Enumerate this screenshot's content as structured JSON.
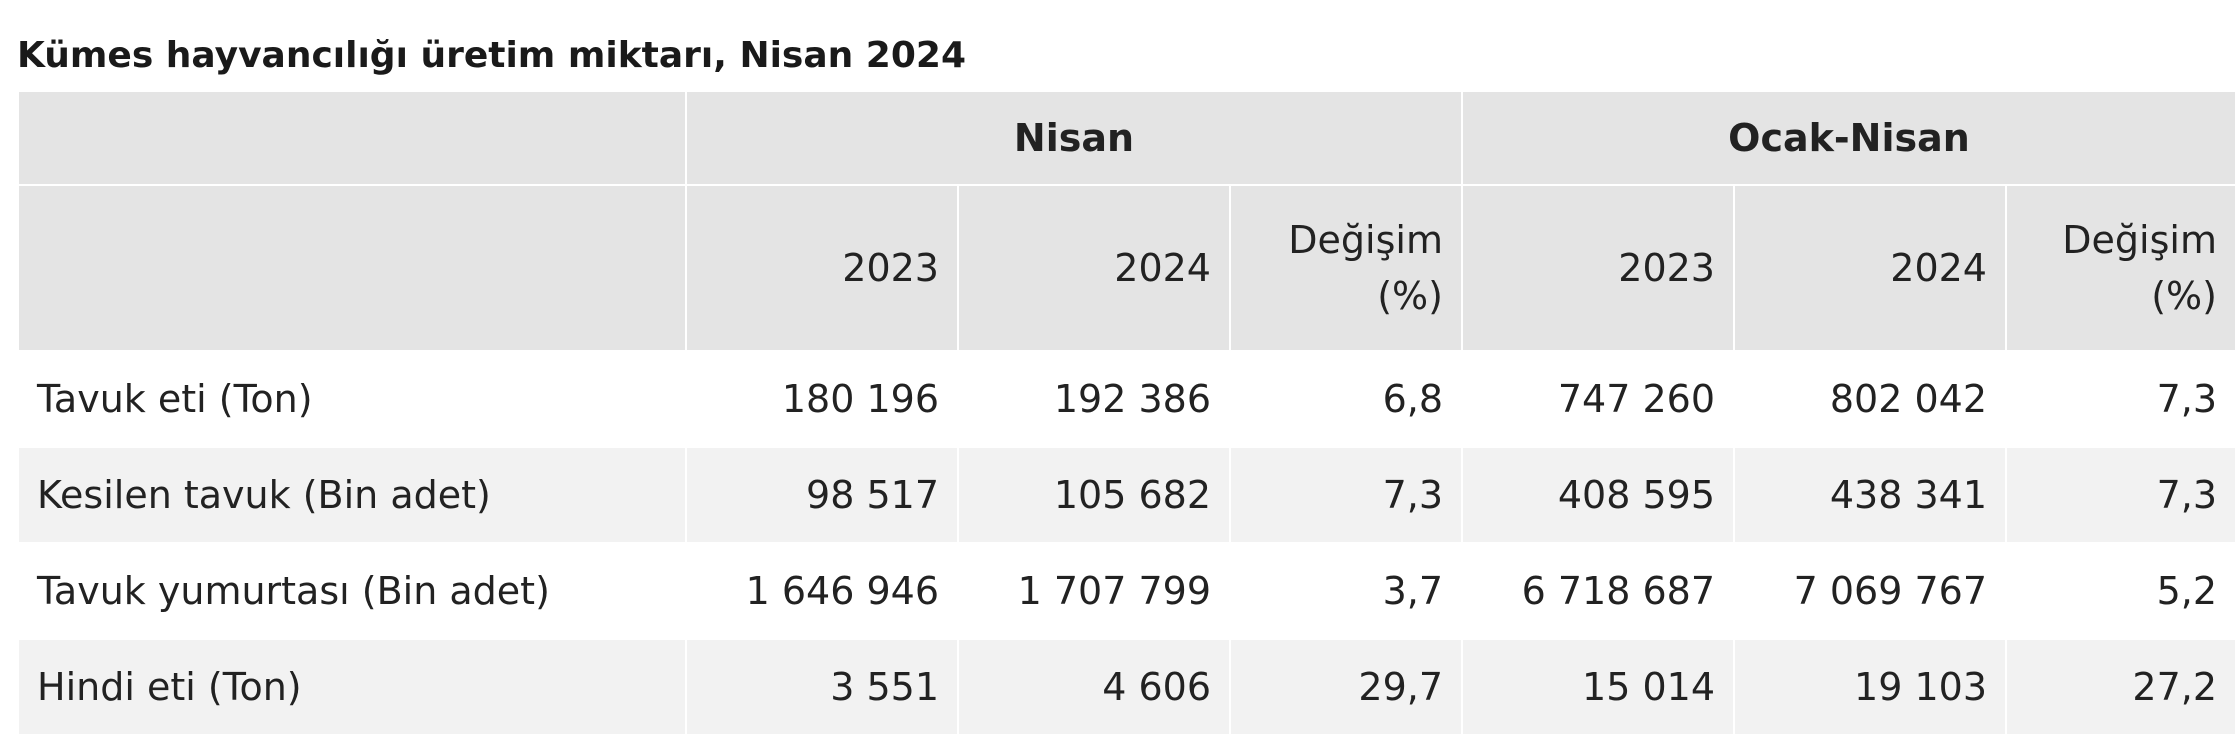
{
  "title": "Kümes hayvancılığı üretim miktarı, Nisan 2024",
  "table": {
    "group_headers": [
      "Nisan",
      "Ocak-Nisan"
    ],
    "sub_headers": {
      "year1": "2023",
      "year2": "2024",
      "change_line1": "Değişim",
      "change_line2": "(%)"
    },
    "rows": [
      {
        "label": "Tavuk eti (Ton)",
        "cells": [
          "180 196",
          "192 386",
          "6,8",
          "747 260",
          "802 042",
          "7,3"
        ]
      },
      {
        "label": "Kesilen tavuk (Bin adet)",
        "cells": [
          "98 517",
          "105 682",
          "7,3",
          "408 595",
          "438 341",
          "7,3"
        ]
      },
      {
        "label": "Tavuk yumurtası (Bin adet)",
        "cells": [
          "1 646 946",
          "1 707 799",
          "3,7",
          "6 718 687",
          "7 069 767",
          "5,2"
        ]
      },
      {
        "label": "Hindi eti (Ton)",
        "cells": [
          "3 551",
          "4 606",
          "29,7",
          "15 014",
          "19 103",
          "27,2"
        ]
      }
    ]
  }
}
